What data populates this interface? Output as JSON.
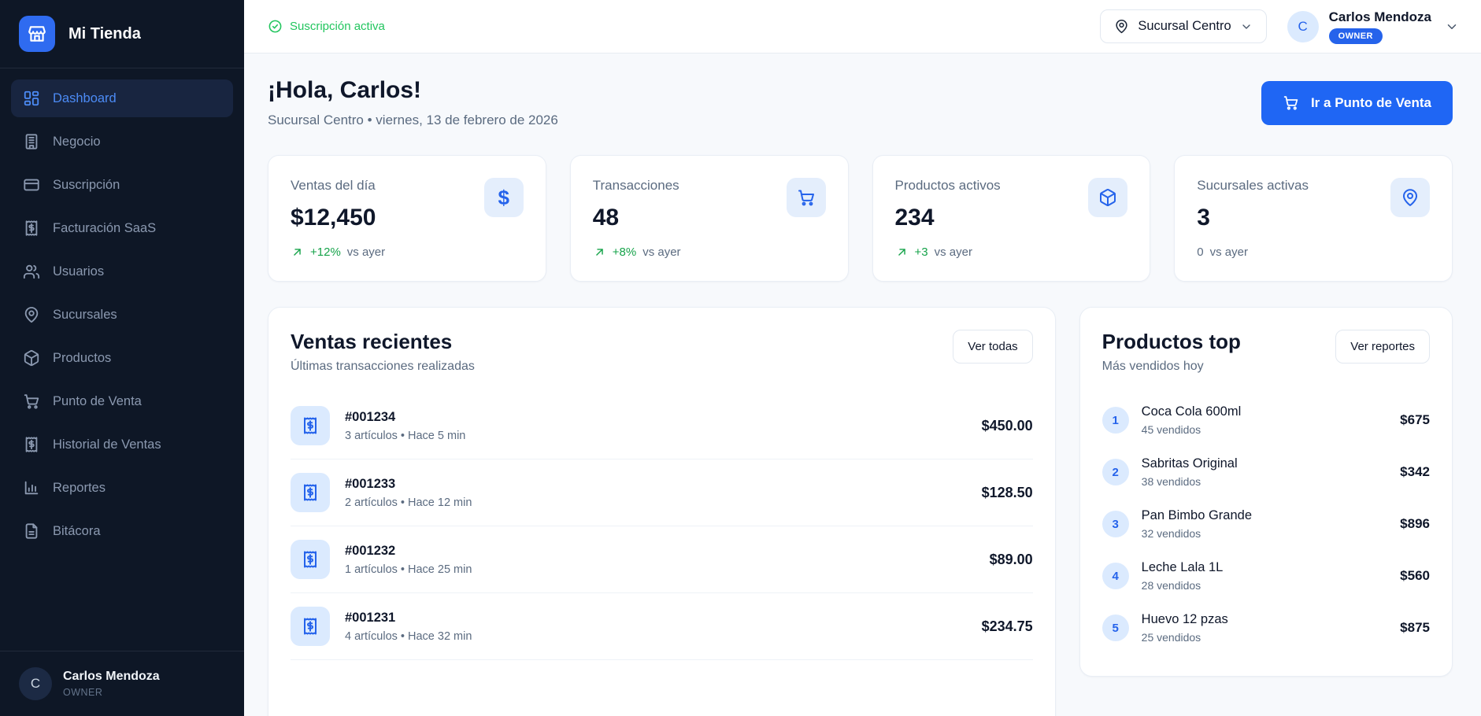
{
  "app": {
    "name": "Mi Tienda",
    "logo_icon": "storefront"
  },
  "colors": {
    "accent_blue": "#1f66f4",
    "sidebar_bg": "#0e1726",
    "active_link": "#4c8bf5",
    "success_green": "#22c55e",
    "trend_green": "#16a34a",
    "icon_chip_bg": "#dbeafe",
    "badge_blue": "#2563eb"
  },
  "sidebar": {
    "items": [
      {
        "label": "Dashboard",
        "icon": "dashboard",
        "active": true
      },
      {
        "label": "Negocio",
        "icon": "building",
        "active": false
      },
      {
        "label": "Suscripción",
        "icon": "credit-card",
        "active": false
      },
      {
        "label": "Facturación SaaS",
        "icon": "receipt",
        "active": false
      },
      {
        "label": "Usuarios",
        "icon": "users",
        "active": false
      },
      {
        "label": "Sucursales",
        "icon": "map-pin",
        "active": false
      },
      {
        "label": "Productos",
        "icon": "package",
        "active": false
      },
      {
        "label": "Punto de Venta",
        "icon": "cart",
        "active": false
      },
      {
        "label": "Historial de Ventas",
        "icon": "receipt",
        "active": false
      },
      {
        "label": "Reportes",
        "icon": "bar-chart",
        "active": false
      },
      {
        "label": "Bitácora",
        "icon": "document",
        "active": false
      }
    ],
    "user": {
      "initial": "C",
      "name": "Carlos Mendoza",
      "role": "OWNER"
    }
  },
  "topbar": {
    "subscription_status": "Suscripción activa",
    "subscription_icon": "check-circle",
    "branch_selector": {
      "label": "Sucursal Centro",
      "icon": "map-pin"
    },
    "user": {
      "initial": "C",
      "name": "Carlos Mendoza",
      "role_badge": "OWNER"
    }
  },
  "header": {
    "greeting": "¡Hola, Carlos!",
    "subtitle": "Sucursal Centro • viernes, 13 de febrero de 2026",
    "pos_button": {
      "label": "Ir a Punto de Venta",
      "icon": "cart"
    }
  },
  "stats": [
    {
      "label": "Ventas del día",
      "value": "$12,450",
      "delta": "+12%",
      "suffix": "vs ayer",
      "icon": "dollar",
      "positive": true
    },
    {
      "label": "Transacciones",
      "value": "48",
      "delta": "+8%",
      "suffix": "vs ayer",
      "icon": "cart",
      "positive": true
    },
    {
      "label": "Productos activos",
      "value": "234",
      "delta": "+3",
      "suffix": "vs ayer",
      "icon": "package",
      "positive": true
    },
    {
      "label": "Sucursales activas",
      "value": "3",
      "delta": "0",
      "suffix": "vs ayer",
      "icon": "map-pin",
      "positive": false
    }
  ],
  "recent_sales": {
    "title": "Ventas recientes",
    "subtitle": "Últimas transacciones realizadas",
    "action_label": "Ver todas",
    "row_icon": "receipt",
    "rows": [
      {
        "id": "#001234",
        "meta": "3 artículos • Hace 5 min",
        "amount": "$450.00"
      },
      {
        "id": "#001233",
        "meta": "2 artículos • Hace 12 min",
        "amount": "$128.50"
      },
      {
        "id": "#001232",
        "meta": "1 artículos • Hace 25 min",
        "amount": "$89.00"
      },
      {
        "id": "#001231",
        "meta": "4 artículos • Hace 32 min",
        "amount": "$234.75"
      }
    ]
  },
  "top_products": {
    "title": "Productos top",
    "subtitle": "Más vendidos hoy",
    "action_label": "Ver reportes",
    "items": [
      {
        "rank": "1",
        "name": "Coca Cola 600ml",
        "meta": "45 vendidos",
        "amount": "$675"
      },
      {
        "rank": "2",
        "name": "Sabritas Original",
        "meta": "38 vendidos",
        "amount": "$342"
      },
      {
        "rank": "3",
        "name": "Pan Bimbo Grande",
        "meta": "32 vendidos",
        "amount": "$896"
      },
      {
        "rank": "4",
        "name": "Leche Lala 1L",
        "meta": "28 vendidos",
        "amount": "$560"
      },
      {
        "rank": "5",
        "name": "Huevo 12 pzas",
        "meta": "25 vendidos",
        "amount": "$875"
      }
    ]
  }
}
